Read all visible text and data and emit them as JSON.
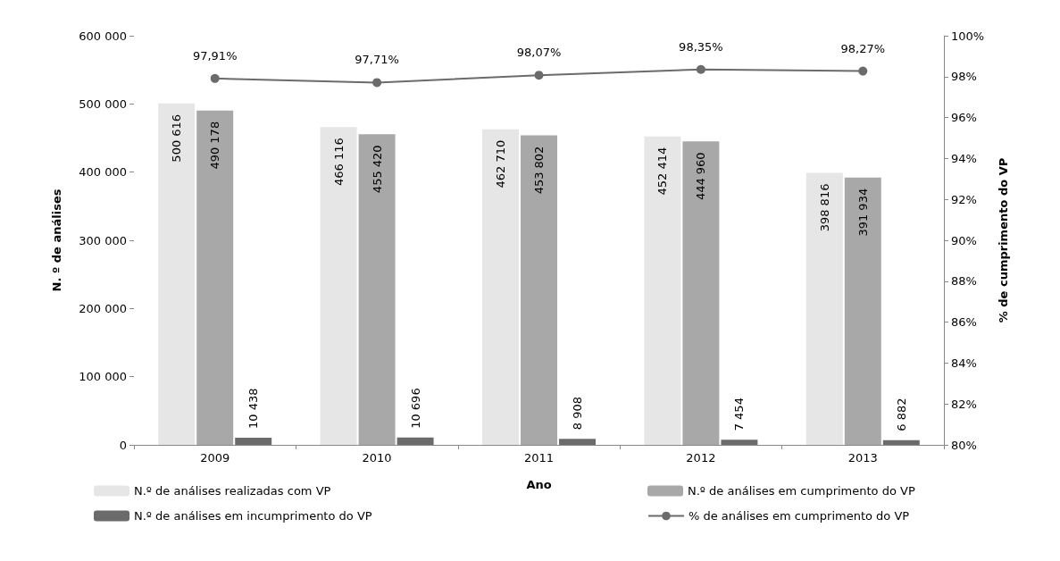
{
  "chart_data": {
    "type": "bar",
    "xlabel": "Ano",
    "ylabel": "N. º de análises",
    "y2label": "% de cumprimento do VP",
    "categories": [
      "2009",
      "2010",
      "2011",
      "2012",
      "2013"
    ],
    "series": [
      {
        "name": "N.º de análises realizadas com VP",
        "color": "#e6e6e6",
        "values": [
          500616,
          466116,
          462710,
          452414,
          398816
        ],
        "value_labels": [
          "500 616",
          "466 116",
          "462 710",
          "452 414",
          "398 816"
        ]
      },
      {
        "name": "N.º de análises em cumprimento do VP",
        "color": "#a8a8a8",
        "values": [
          490178,
          455420,
          453802,
          444960,
          391934
        ],
        "value_labels": [
          "490 178",
          "455 420",
          "453 802",
          "444 960",
          "391 934"
        ]
      },
      {
        "name": "N.º de análises em incumprimento do VP",
        "color": "#6b6b6b",
        "values": [
          10438,
          10696,
          8908,
          7454,
          6882
        ],
        "value_labels": [
          "10 438",
          "10 696",
          "8 908",
          "7 454",
          "6 882"
        ]
      },
      {
        "name": "% de análises em cumprimento do VP",
        "type": "line",
        "axis": "y2",
        "color": "#6b6b6b",
        "marker": "circle",
        "values": [
          97.91,
          97.71,
          98.07,
          98.35,
          98.27
        ],
        "value_labels": [
          "97,91%",
          "97,71%",
          "98,07%",
          "98,35%",
          "98,27%"
        ]
      }
    ],
    "ylim": [
      0,
      600000
    ],
    "yticks": [
      {
        "value": 0,
        "label": "0"
      },
      {
        "value": 100000,
        "label": "100 000"
      },
      {
        "value": 200000,
        "label": "200 000"
      },
      {
        "value": 300000,
        "label": "300 000"
      },
      {
        "value": 400000,
        "label": "400 000"
      },
      {
        "value": 500000,
        "label": "500 000"
      },
      {
        "value": 600000,
        "label": "600 000"
      }
    ],
    "y2lim": [
      80,
      100
    ],
    "y2ticks": [
      {
        "value": 80,
        "label": "80%"
      },
      {
        "value": 82,
        "label": "82%"
      },
      {
        "value": 84,
        "label": "84%"
      },
      {
        "value": 86,
        "label": "86%"
      },
      {
        "value": 88,
        "label": "88%"
      },
      {
        "value": 90,
        "label": "90%"
      },
      {
        "value": 92,
        "label": "92%"
      },
      {
        "value": 94,
        "label": "94%"
      },
      {
        "value": 96,
        "label": "96%"
      },
      {
        "value": 98,
        "label": "98%"
      },
      {
        "value": 100,
        "label": "100%"
      }
    ],
    "grid": false,
    "legend": "bottom"
  }
}
